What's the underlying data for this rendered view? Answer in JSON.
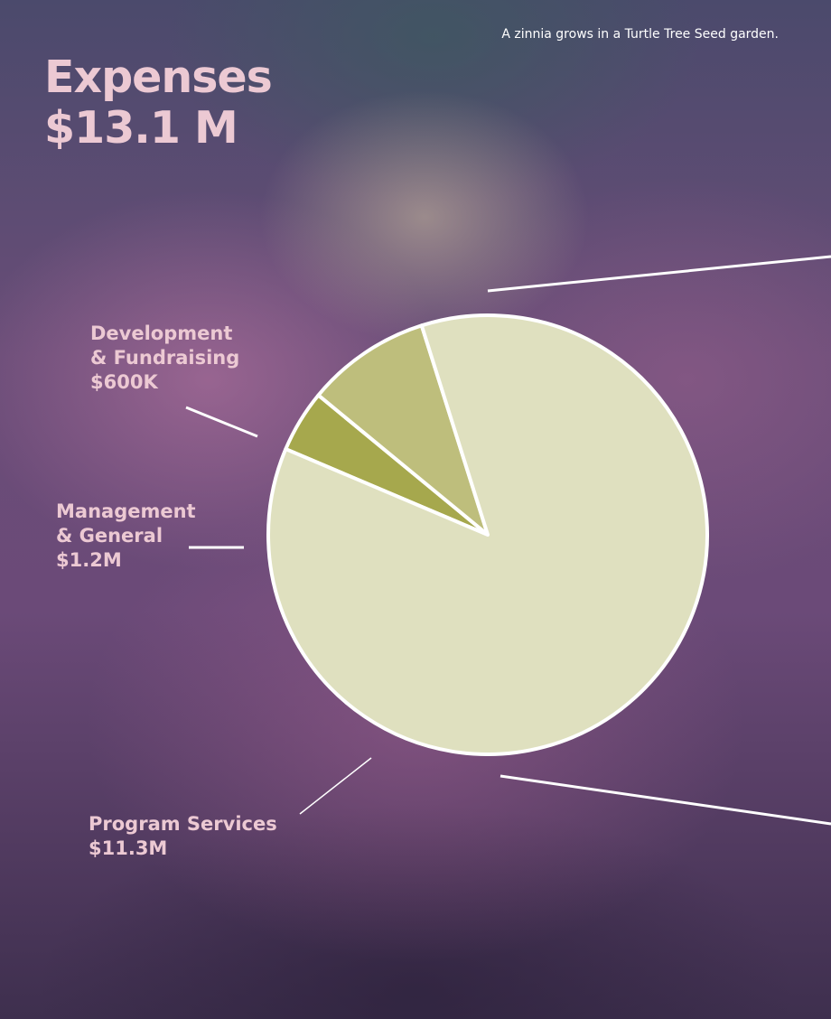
{
  "caption": "A zinnia grows in a Turtle Tree Seed garden.",
  "title_line1": "Expenses",
  "title_line2": "$13.1 M",
  "labels": {
    "development": {
      "line1": "Development",
      "line2": "& Fundraising",
      "value": "$600K"
    },
    "management": {
      "line1": "Management",
      "line2": "& General",
      "value": "$1.2M"
    },
    "program": {
      "line1": "Program Services",
      "value": "$11.3M"
    }
  },
  "chart_data": {
    "type": "pie",
    "categories": [
      "Development & Fundraising",
      "Management & General",
      "Program Services"
    ],
    "values": [
      0.6,
      1.2,
      11.3
    ],
    "colors": [
      "#a6a84d",
      "#bebe7c",
      "#dfe0bf"
    ]
  }
}
